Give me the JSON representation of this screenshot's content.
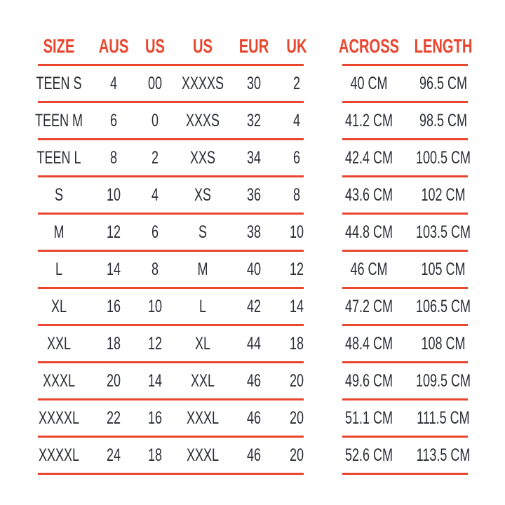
{
  "colors": {
    "accent": "#e8462e",
    "text": "#2a2d33",
    "background": "#ffffff"
  },
  "left_table": {
    "headers": {
      "size": "SIZE",
      "aus": "AUS",
      "us_num": "US",
      "us_letter": "US",
      "eur": "EUR",
      "uk": "UK"
    },
    "rows": [
      {
        "size": "TEEN S",
        "aus": "4",
        "us_num": "00",
        "us_letter": "XXXXS",
        "eur": "30",
        "uk": "2"
      },
      {
        "size": "TEEN M",
        "aus": "6",
        "us_num": "0",
        "us_letter": "XXXS",
        "eur": "32",
        "uk": "4"
      },
      {
        "size": "TEEN L",
        "aus": "8",
        "us_num": "2",
        "us_letter": "XXS",
        "eur": "34",
        "uk": "6"
      },
      {
        "size": "S",
        "aus": "10",
        "us_num": "4",
        "us_letter": "XS",
        "eur": "36",
        "uk": "8"
      },
      {
        "size": "M",
        "aus": "12",
        "us_num": "6",
        "us_letter": "S",
        "eur": "38",
        "uk": "10"
      },
      {
        "size": "L",
        "aus": "14",
        "us_num": "8",
        "us_letter": "M",
        "eur": "40",
        "uk": "12"
      },
      {
        "size": "XL",
        "aus": "16",
        "us_num": "10",
        "us_letter": "L",
        "eur": "42",
        "uk": "14"
      },
      {
        "size": "XXL",
        "aus": "18",
        "us_num": "12",
        "us_letter": "XL",
        "eur": "44",
        "uk": "18"
      },
      {
        "size": "XXXL",
        "aus": "20",
        "us_num": "14",
        "us_letter": "XXL",
        "eur": "46",
        "uk": "20"
      },
      {
        "size": "XXXXL",
        "aus": "22",
        "us_num": "16",
        "us_letter": "XXXL",
        "eur": "46",
        "uk": "20"
      },
      {
        "size": "XXXXL",
        "aus": "24",
        "us_num": "18",
        "us_letter": "XXXL",
        "eur": "46",
        "uk": "20"
      }
    ]
  },
  "right_table": {
    "headers": {
      "across": "ACROSS",
      "length": "LENGTH"
    },
    "rows": [
      {
        "across": "40 CM",
        "length": "96.5 CM"
      },
      {
        "across": "41.2 CM",
        "length": "98.5 CM"
      },
      {
        "across": "42.4 CM",
        "length": "100.5 CM"
      },
      {
        "across": "43.6 CM",
        "length": "102 CM"
      },
      {
        "across": "44.8 CM",
        "length": "103.5 CM"
      },
      {
        "across": "46 CM",
        "length": "105 CM"
      },
      {
        "across": "47.2 CM",
        "length": "106.5 CM"
      },
      {
        "across": "48.4 CM",
        "length": "108 CM"
      },
      {
        "across": "49.6 CM",
        "length": "109.5 CM"
      },
      {
        "across": "51.1 CM",
        "length": "111.5 CM"
      },
      {
        "across": "52.6 CM",
        "length": "113.5 CM"
      }
    ]
  }
}
